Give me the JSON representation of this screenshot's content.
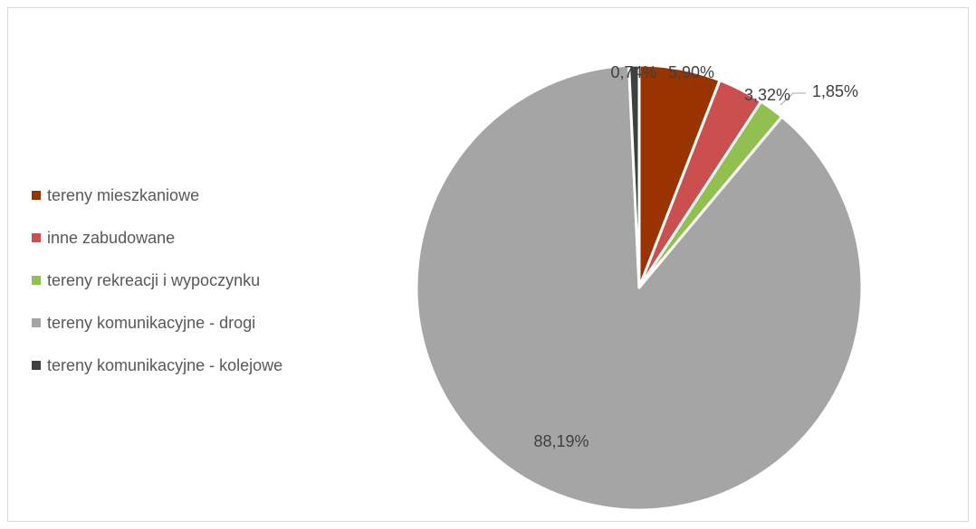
{
  "chart_data": {
    "type": "pie",
    "title": "",
    "legend_position": "left",
    "slices": [
      {
        "name": "tereny mieszkaniowe",
        "value": 5.9,
        "label": "5,90%",
        "color": "#993300"
      },
      {
        "name": "inne zabudowane",
        "value": 3.32,
        "label": "3,32%",
        "color": "#cc4f4f"
      },
      {
        "name": "tereny rekreacji i wypoczynku",
        "value": 1.85,
        "label": "1,85%",
        "color": "#92c050"
      },
      {
        "name": "tereny komunikacyjne - drogi",
        "value": 88.19,
        "label": "88,19%",
        "color": "#a5a5a5"
      },
      {
        "name": "tereny komunikacyjne - kolejowe",
        "value": 0.74,
        "label": "0,74%",
        "color": "#404040"
      }
    ]
  }
}
